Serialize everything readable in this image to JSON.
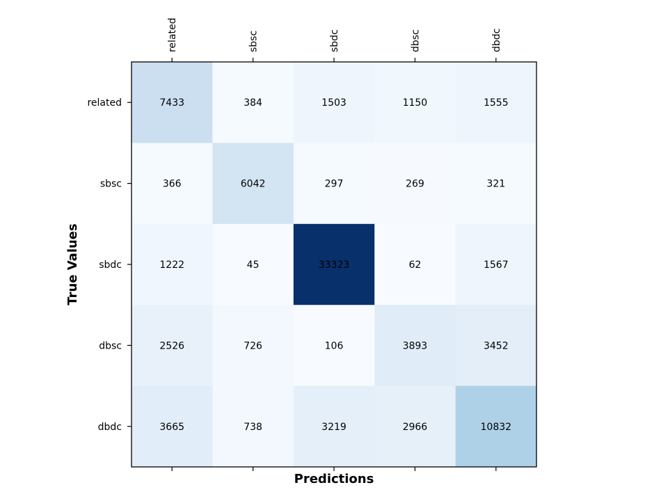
{
  "chart_data": {
    "type": "heatmap",
    "title": "",
    "xlabel": "Predictions",
    "ylabel": "True Values",
    "x_categories": [
      "related",
      "sbsc",
      "sbdc",
      "dbsc",
      "dbdc"
    ],
    "y_categories": [
      "related",
      "sbsc",
      "sbdc",
      "dbsc",
      "dbdc"
    ],
    "values": [
      [
        7433,
        384,
        1503,
        1150,
        1555
      ],
      [
        366,
        6042,
        297,
        269,
        321
      ],
      [
        1222,
        45,
        33323,
        62,
        1567
      ],
      [
        2526,
        726,
        106,
        3893,
        3452
      ],
      [
        3665,
        738,
        3219,
        2966,
        10832
      ]
    ],
    "colormap": "Blues",
    "x_tick_position": "top",
    "grid": false
  }
}
